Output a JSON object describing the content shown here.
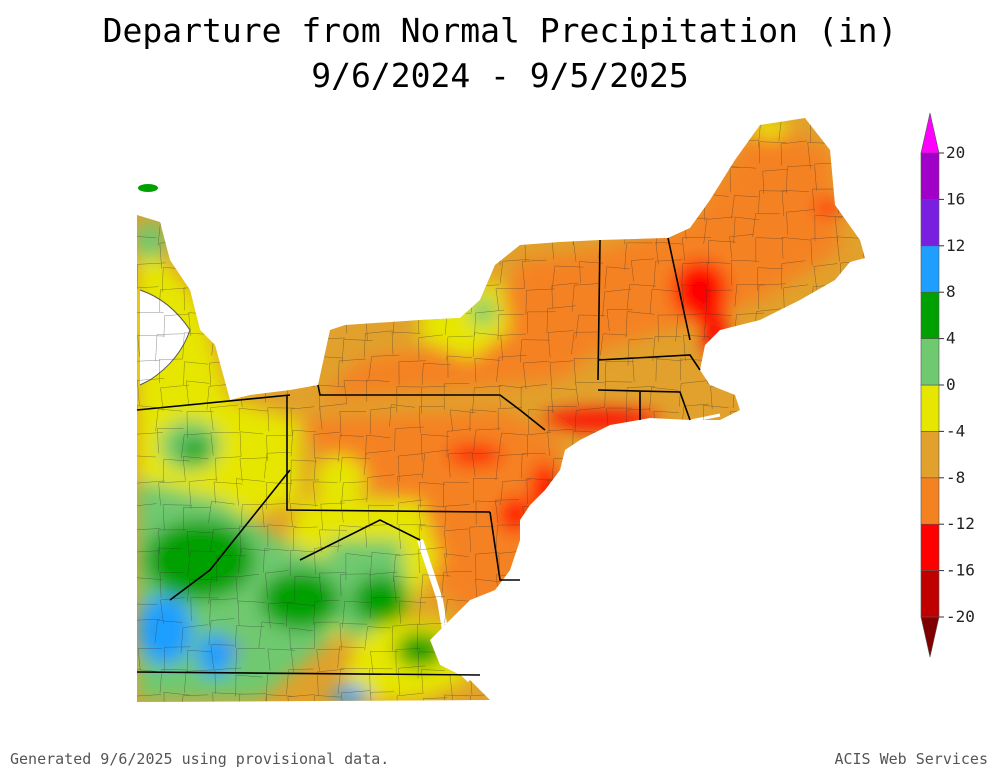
{
  "title": {
    "line1": "Departure from Normal Precipitation (in)",
    "line2": "9/6/2024 - 9/5/2025"
  },
  "legend": {
    "colors": [
      "#800000",
      "#c00000",
      "#ff0000",
      "#f58220",
      "#e1a12c",
      "#e6e600",
      "#6fc96f",
      "#00a000",
      "#1e9fff",
      "#7a1fe0",
      "#a000c8",
      "#ff00ff"
    ],
    "ticks": [
      "-20",
      "-16",
      "-12",
      "-8",
      "-4",
      "0",
      "4",
      "8",
      "12",
      "16",
      "20"
    ]
  },
  "footer": {
    "left": "Generated 9/6/2025 using provisional data.",
    "right": "ACIS Web Services"
  }
}
